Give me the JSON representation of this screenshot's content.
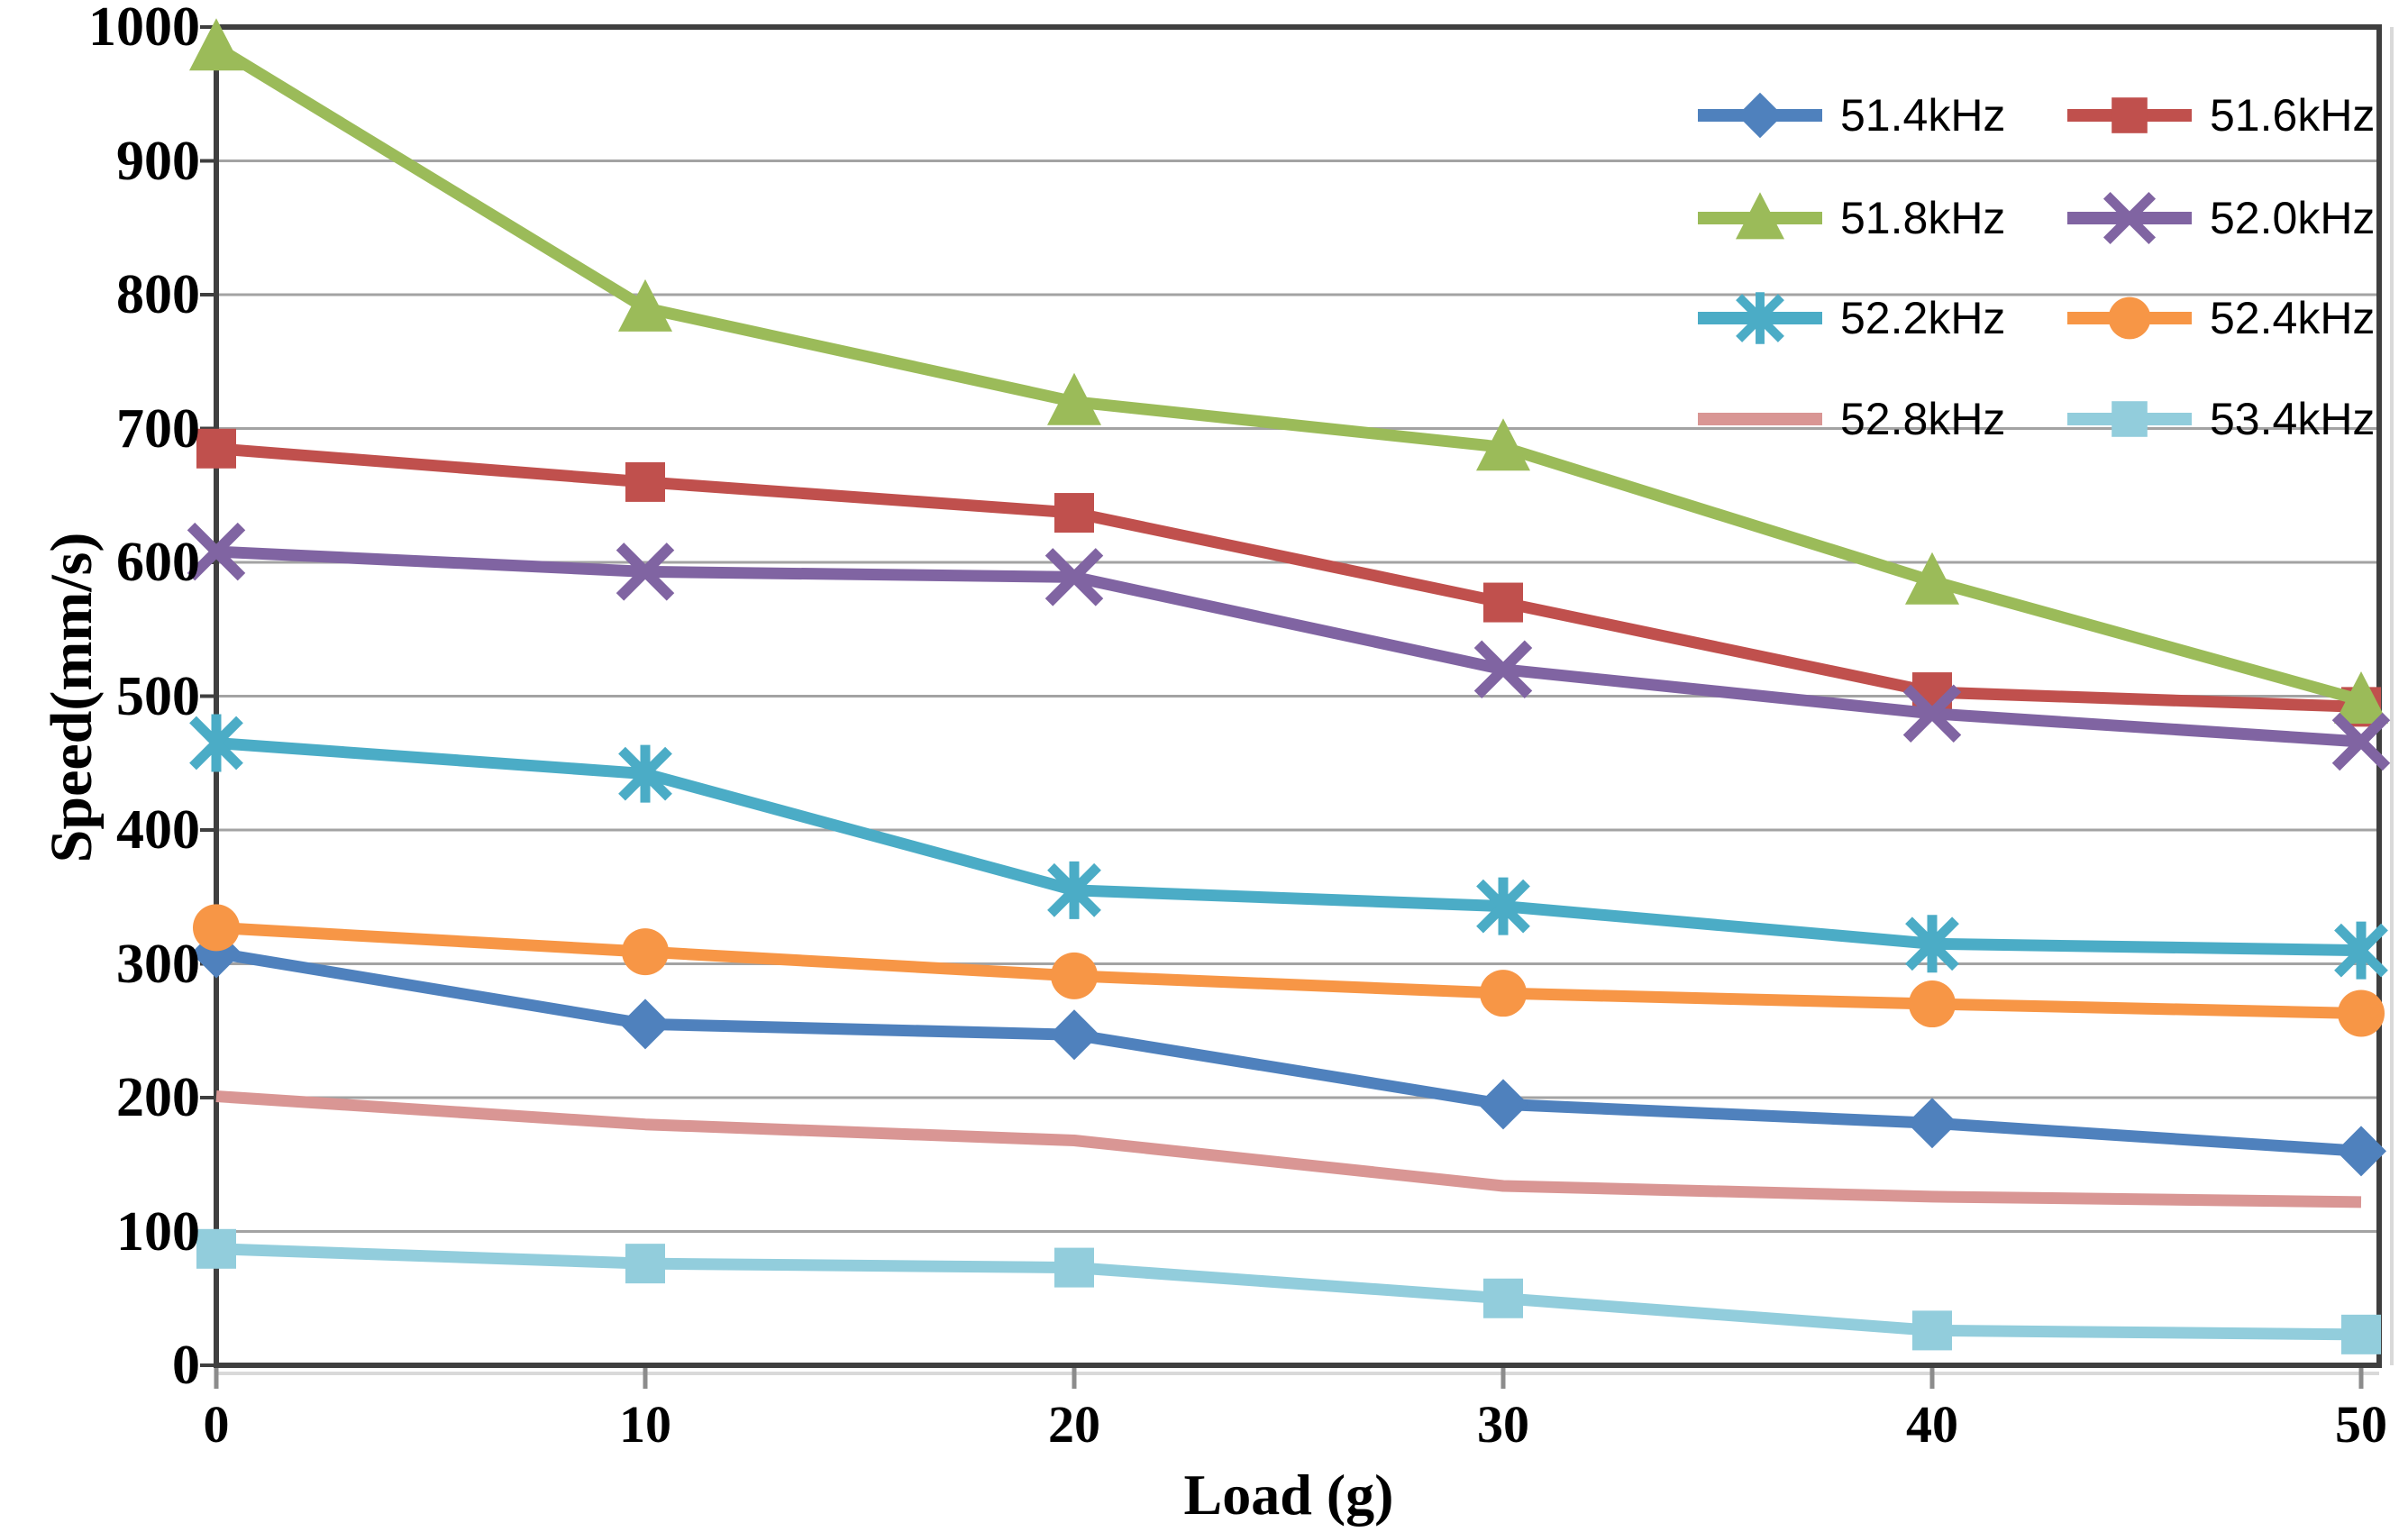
{
  "figure": {
    "x_axis_title": "Load (g)",
    "y_axis_title": "Speed(mm/s)"
  },
  "chart_data": {
    "type": "line",
    "title": "",
    "xlabel": "Load (g)",
    "ylabel": "Speed(mm/s)",
    "x": [
      0,
      10,
      20,
      30,
      40,
      50
    ],
    "x_tick_labels": [
      "0",
      "10",
      "20",
      "30",
      "40",
      "50"
    ],
    "y_tick_labels": [
      "0",
      "100",
      "200",
      "300",
      "400",
      "500",
      "600",
      "700",
      "800",
      "900",
      "1000"
    ],
    "ylim": [
      0,
      1000
    ],
    "xlim": [
      0,
      50
    ],
    "grid": "horizontal",
    "legend_position": "top-right inside plot, 2 columns",
    "axis_color": "#3f3f3f",
    "gridline_color": "#a3a3a3",
    "plot_background": "#ffffff",
    "series": [
      {
        "name": "51.4kHz",
        "color": "#4F81BD",
        "marker": "diamond",
        "values": [
          308,
          255,
          247,
          195,
          181,
          160
        ]
      },
      {
        "name": "51.6kHz",
        "color": "#C0504D",
        "marker": "square",
        "values": [
          685,
          660,
          637,
          570,
          503,
          492
        ]
      },
      {
        "name": "51.8kHz",
        "color": "#9BBB59",
        "marker": "triangle",
        "values": [
          985,
          790,
          720,
          686,
          586,
          497
        ]
      },
      {
        "name": "52.0kHz",
        "color": "#8064A2",
        "marker": "x",
        "values": [
          608,
          593,
          589,
          520,
          487,
          466
        ]
      },
      {
        "name": "52.2kHz",
        "color": "#4BACC6",
        "marker": "asterisk",
        "values": [
          465,
          442,
          355,
          343,
          315,
          310
        ]
      },
      {
        "name": "52.4kHz",
        "color": "#F79646",
        "marker": "circle",
        "values": [
          327,
          309,
          291,
          278,
          270,
          263
        ]
      },
      {
        "name": "52.8kHz",
        "color": "#D99694",
        "marker": "none",
        "values": [
          201,
          180,
          168,
          134,
          126,
          122
        ]
      },
      {
        "name": "53.4kHz",
        "color": "#92CDDC",
        "marker": "square",
        "values": [
          87,
          76,
          73,
          50,
          26,
          23
        ]
      }
    ]
  }
}
